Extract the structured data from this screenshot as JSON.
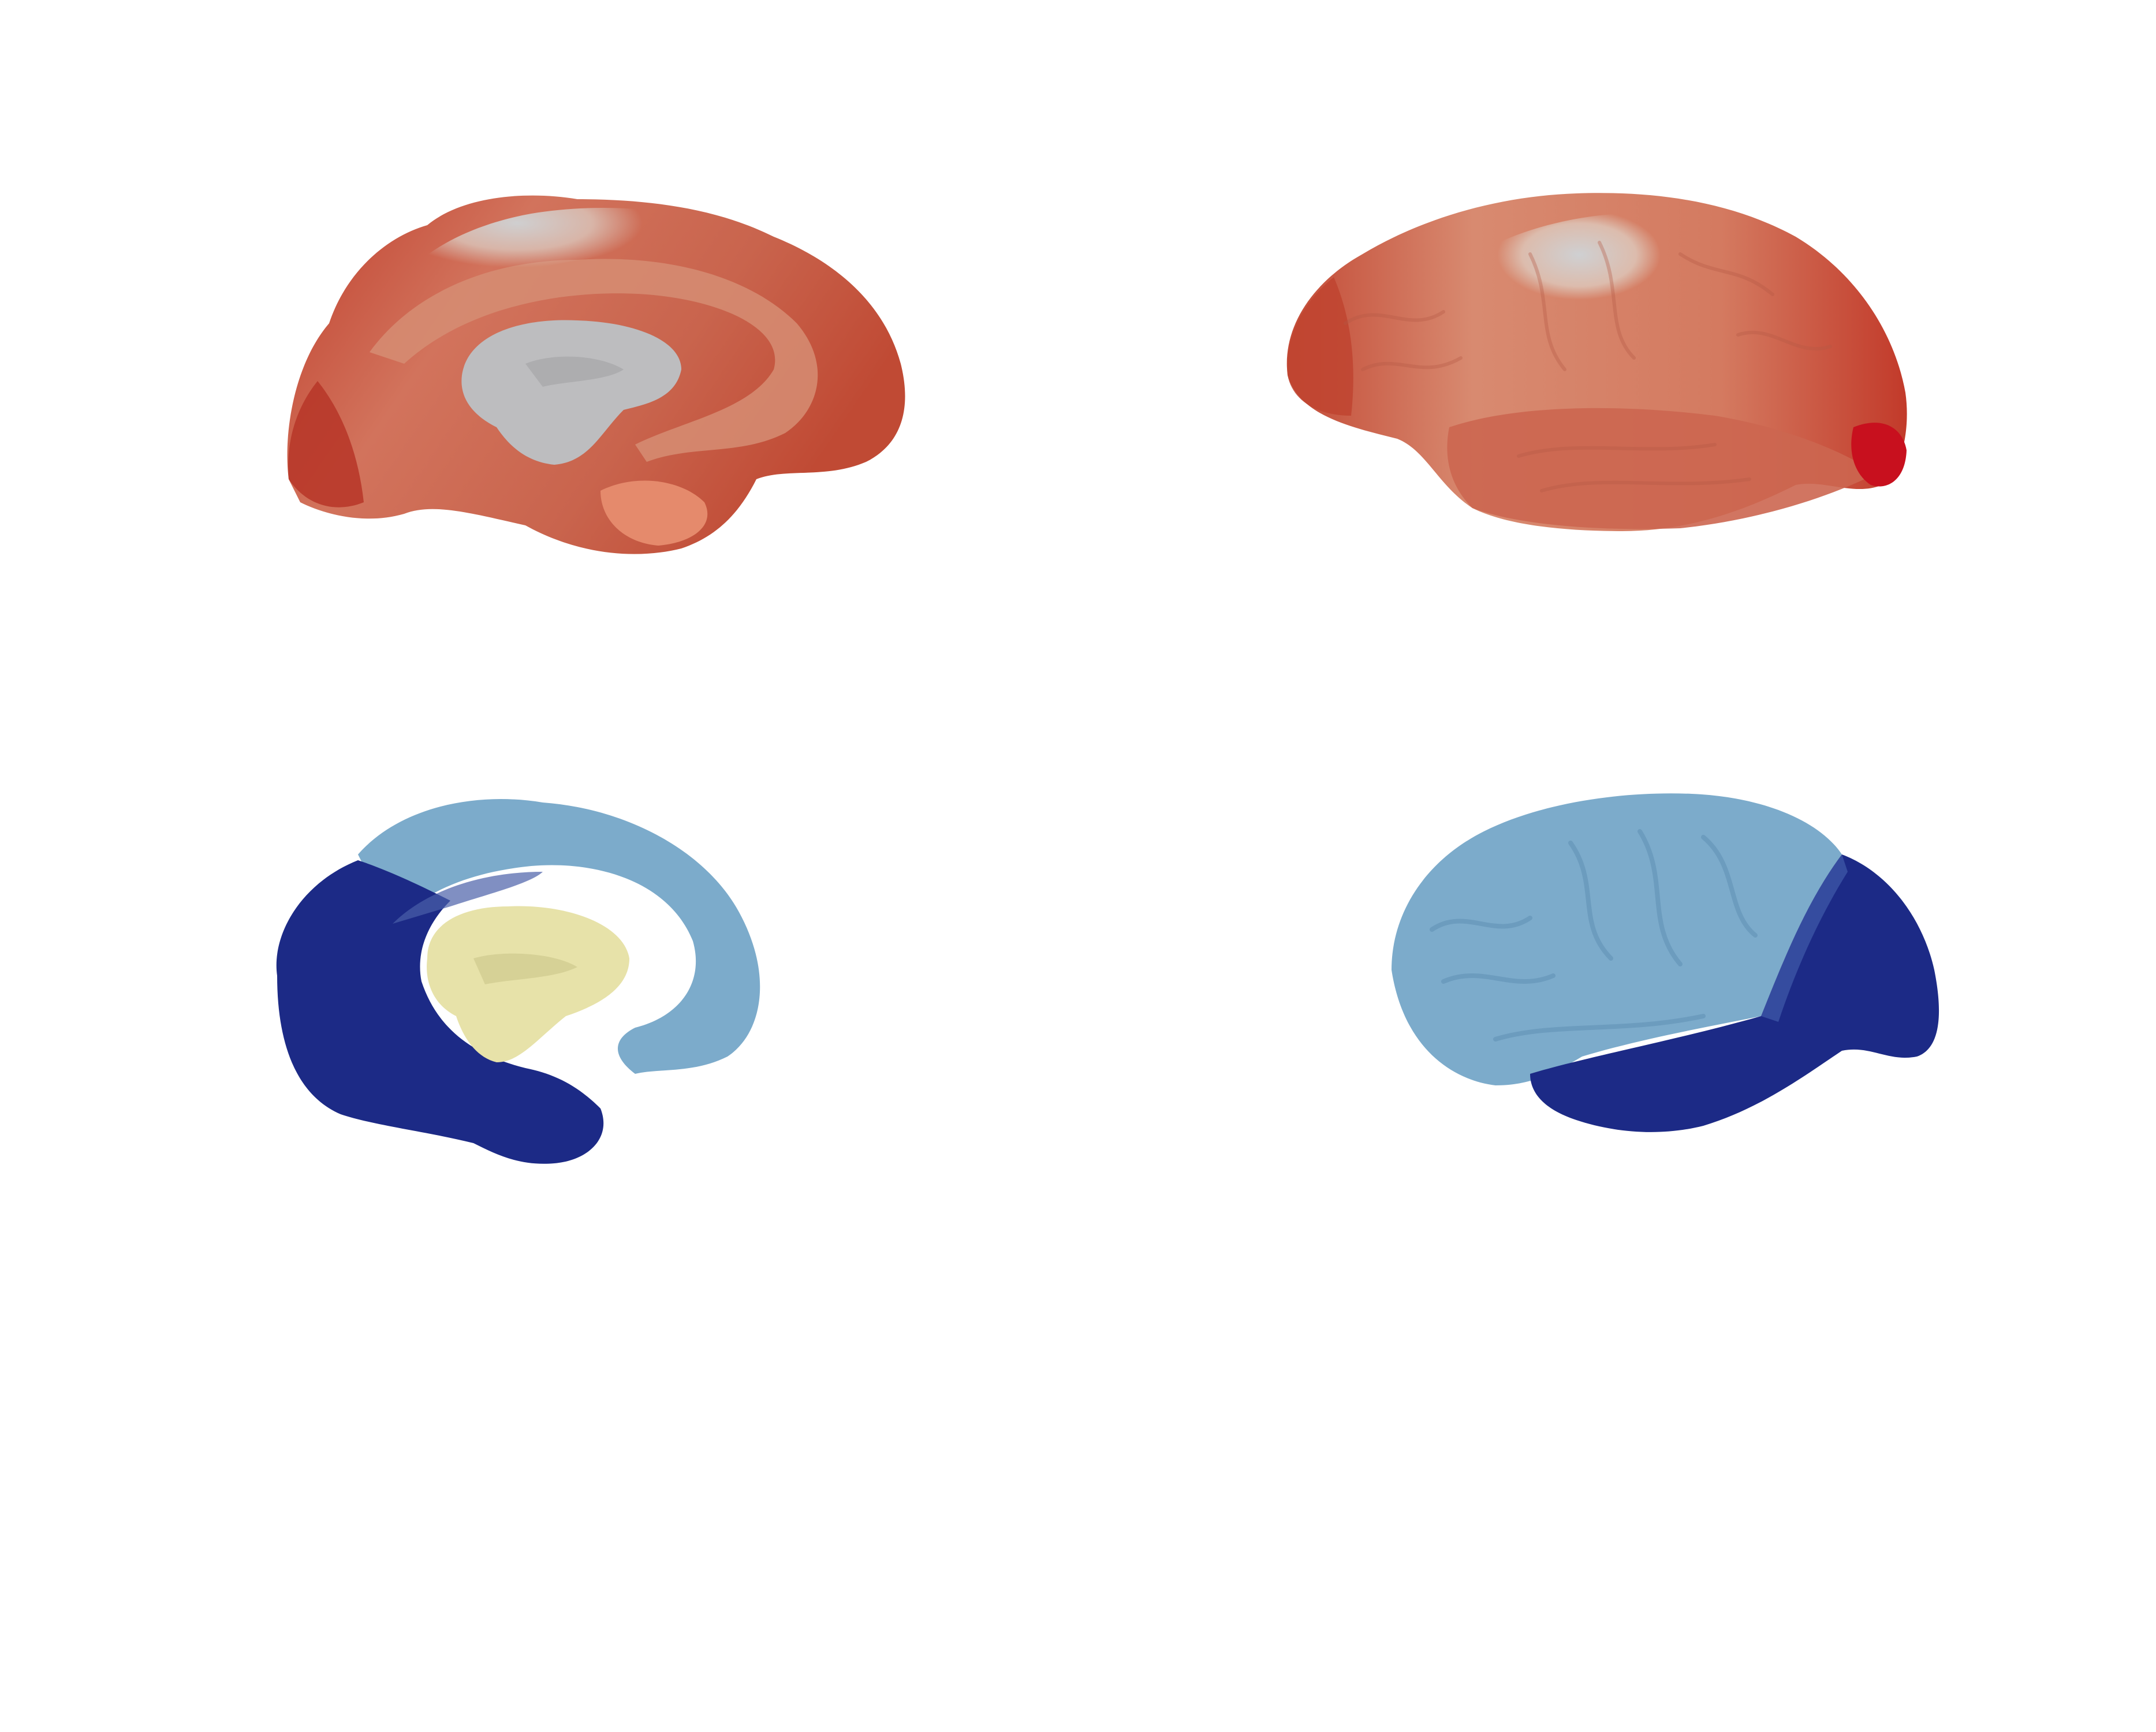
{
  "figure": {
    "colors": {
      "continuous_low": "#c4c4c6",
      "continuous_mid": "#e2a48c",
      "continuous_high": "#c0392b",
      "continuous_peak": "#c8101e",
      "continuous_medial_wall": "#b9b9bb",
      "discrete_dark": "#1c2a86",
      "discrete_light": "#7cabcb",
      "discrete_medial_wall": "#e7e2a9",
      "background": "#ffffff"
    },
    "panels": [
      {
        "view": "medial",
        "map": "continuous"
      },
      {
        "view": "lateral",
        "map": "continuous"
      },
      {
        "view": "medial",
        "map": "discrete"
      },
      {
        "view": "lateral",
        "map": "discrete"
      }
    ]
  }
}
